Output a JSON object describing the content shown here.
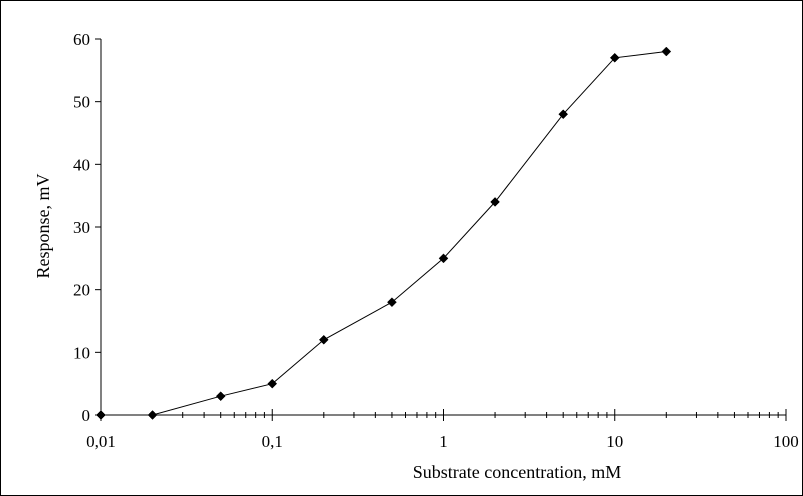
{
  "chart_data": {
    "type": "line",
    "title": "",
    "xlabel": "Substrate concentration, mM",
    "ylabel": "Response, mV",
    "x_scale": "log",
    "xlim": [
      0.01,
      100
    ],
    "ylim": [
      0,
      60
    ],
    "x_ticks": [
      0.01,
      0.1,
      1,
      10,
      100
    ],
    "x_tick_labels": [
      "0,01",
      "0,1",
      "1",
      "10",
      "100"
    ],
    "y_ticks": [
      0,
      10,
      20,
      30,
      40,
      50,
      60
    ],
    "y_tick_labels": [
      "0",
      "10",
      "20",
      "30",
      "40",
      "50",
      "60"
    ],
    "grid": false,
    "legend": "none",
    "series": [
      {
        "marker": "diamond",
        "color": "#000000",
        "x": [
          0.01,
          0.02,
          0.05,
          0.1,
          0.2,
          0.5,
          1,
          2,
          5,
          10,
          20
        ],
        "y": [
          0,
          0,
          3,
          5,
          12,
          18,
          25,
          34,
          48,
          57,
          58
        ]
      }
    ]
  }
}
